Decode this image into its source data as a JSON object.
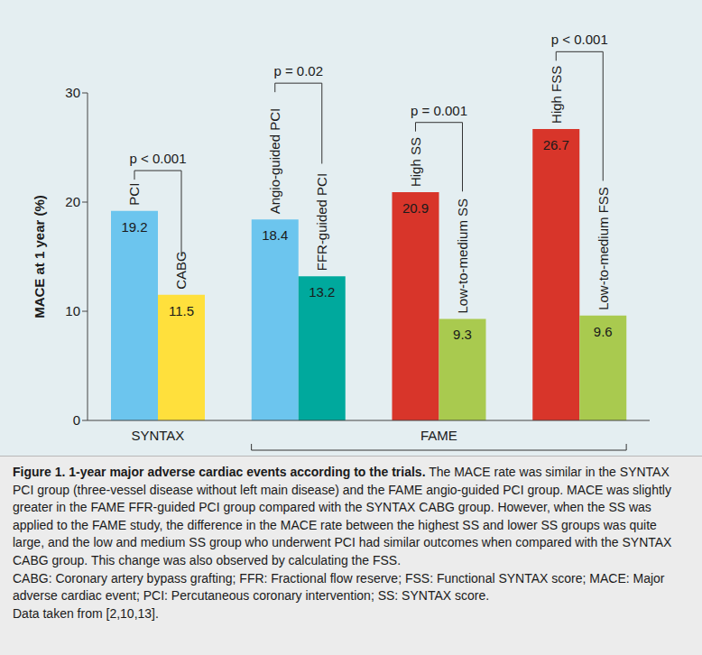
{
  "chart_data": {
    "type": "bar",
    "categories": [
      "PCI",
      "CABG",
      "Angio-guided PCI",
      "FFR-guided PCI",
      "High SS",
      "Low-to-medium SS",
      "High FSS",
      "Low-to-medium FSS"
    ],
    "values": [
      19.2,
      11.5,
      18.4,
      13.2,
      20.9,
      9.3,
      26.7,
      9.6
    ],
    "colors": [
      "#6cc5ee",
      "#ffe03c",
      "#6cc5ee",
      "#00a99d",
      "#d8352a",
      "#a9ca4f",
      "#d8352a",
      "#a9ca4f"
    ],
    "ylabel": "MACE at 1 year (%)",
    "ylim": [
      0,
      30
    ],
    "yticks": [
      0,
      10,
      20,
      30
    ],
    "data_labels": true,
    "groups": [
      {
        "label": "SYNTAX",
        "categories": [
          "PCI",
          "CABG"
        ]
      },
      {
        "label": "FAME",
        "categories": [
          "Angio-guided PCI",
          "FFR-guided PCI",
          "High SS",
          "Low-to-medium SS",
          "High FSS",
          "Low-to-medium FSS"
        ]
      }
    ],
    "annotations": [
      {
        "text": "p < 0.001",
        "between": [
          "PCI",
          "CABG"
        ]
      },
      {
        "text": "p = 0.02",
        "between": [
          "Angio-guided PCI",
          "FFR-guided PCI"
        ]
      },
      {
        "text": "p = 0.001",
        "between": [
          "High SS",
          "Low-to-medium SS"
        ]
      },
      {
        "text": "p < 0.001",
        "between": [
          "High FSS",
          "Low-to-medium FSS"
        ]
      }
    ]
  },
  "caption": {
    "title": "Figure 1. 1-year major adverse cardiac events according to the trials.",
    "text": "The MACE rate was similar in the SYNTAX PCI group (three-vessel disease without left main disease) and the FAME angio-guided PCI group. MACE was slightly greater in the FAME FFR-guided PCI group compared with the SYNTAX CABG group. However, when the SS was applied to the FAME study, the difference in the MACE rate between the highest SS and lower SS groups was quite large, and the low and medium SS group who underwent PCI had similar outcomes when compared with the SYNTAX CABG group. This change was also observed by calculating the FSS.",
    "abbreviations": "CABG: Coronary artery bypass grafting; FFR: Fractional flow reserve; FSS: Functional SYNTAX score; MACE: Major adverse cardiac event; PCI: Percutaneous coronary intervention; SS: SYNTAX score.",
    "source": "Data taken from [2,10,13]."
  }
}
